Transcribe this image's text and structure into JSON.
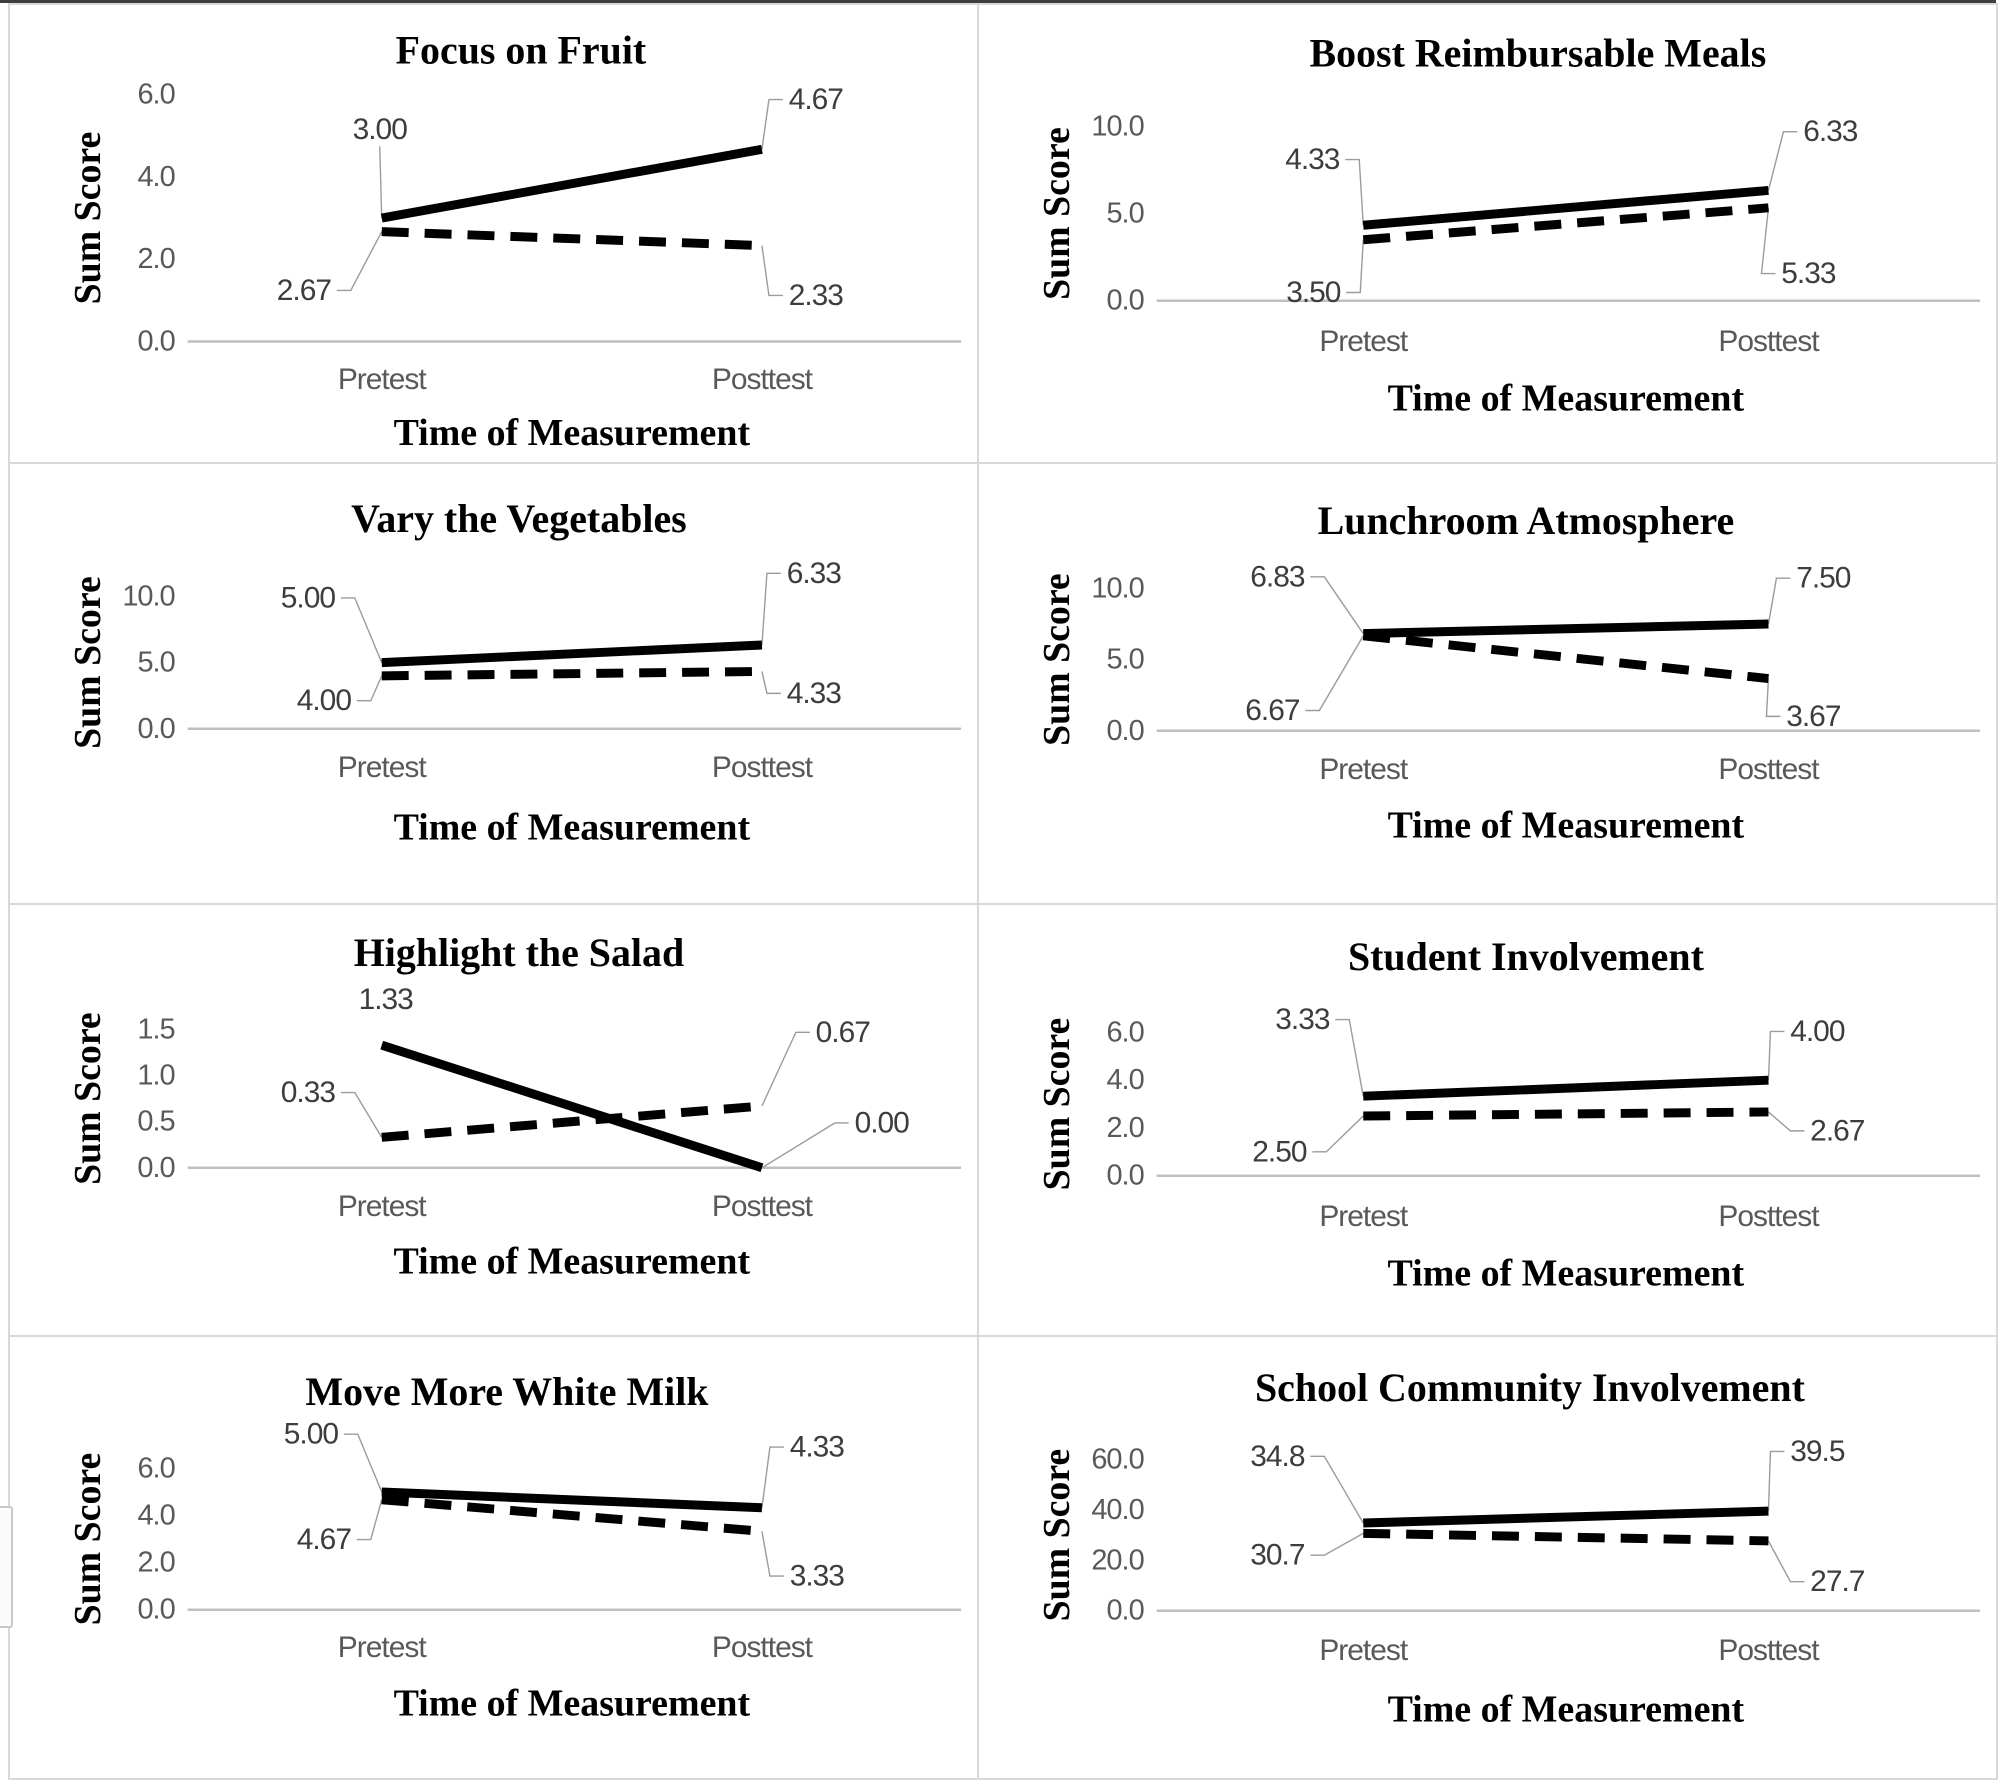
{
  "figure": {
    "background": "#ffffff",
    "top_edge_color": "#3e3e3e",
    "panel_border_color": "#d9d9d9",
    "axis_line_color": "#bfbfbf",
    "leader_line_color": "#9b9b9b",
    "series_line_color": "#000000",
    "tick_text_color": "#595959",
    "data_label_color": "#3d3d3d"
  },
  "chart_data": [
    {
      "type": "line",
      "title": "Focus on Fruit",
      "ylabel": "Sum Score",
      "xlabel": "Time of Measurement",
      "categories": [
        "Pretest",
        "Posttest"
      ],
      "yticks": [
        "6.0",
        "4.0",
        "2.0",
        "0.0"
      ],
      "ylim": [
        0,
        6
      ],
      "grid": false,
      "legend": "none",
      "series": [
        {
          "style": "solid",
          "values": [
            3.0,
            4.67
          ],
          "labels": [
            "3.00",
            "4.67"
          ],
          "label_offsets": [
            {
              "dx": -2,
              "dy": -89
            },
            {
              "dx": 54,
              "dy": -50
            }
          ],
          "leaders": [
            "line",
            "line"
          ]
        },
        {
          "style": "dashed",
          "values": [
            2.67,
            2.33
          ],
          "labels": [
            "2.67",
            "2.33"
          ],
          "label_offsets": [
            {
              "dx": -78,
              "dy": 59
            },
            {
              "dx": 54,
              "dy": 50
            }
          ],
          "leaders": [
            "line",
            "line"
          ]
        }
      ]
    },
    {
      "type": "line",
      "title": "Boost Reimbursable Meals",
      "ylabel": "Sum Score",
      "xlabel": "Time of Measurement",
      "categories": [
        "Pretest",
        "Posttest"
      ],
      "yticks": [
        "10.0",
        "5.0",
        "0.0"
      ],
      "ylim": [
        0,
        10
      ],
      "grid": false,
      "legend": "none",
      "series": [
        {
          "style": "solid",
          "values": [
            4.33,
            6.33
          ],
          "labels": [
            "4.33",
            "6.33"
          ],
          "label_offsets": [
            {
              "dx": -51,
              "dy": -66
            },
            {
              "dx": 62,
              "dy": -59
            }
          ],
          "leaders": [
            "line",
            "line"
          ]
        },
        {
          "style": "dashed",
          "values": [
            3.5,
            5.33
          ],
          "labels": [
            "3.50",
            "5.33"
          ],
          "label_offsets": [
            {
              "dx": -50,
              "dy": 53
            },
            {
              "dx": 40,
              "dy": 66
            }
          ],
          "leaders": [
            "line",
            "line"
          ]
        }
      ]
    },
    {
      "type": "line",
      "title": "Vary the Vegetables",
      "ylabel": "Sum Score",
      "xlabel": "Time of Measurement",
      "categories": [
        "Pretest",
        "Posttest"
      ],
      "yticks": [
        "10.0",
        "5.0",
        "0.0"
      ],
      "ylim": [
        0,
        10
      ],
      "grid": false,
      "legend": "none",
      "series": [
        {
          "style": "solid",
          "values": [
            5.0,
            6.33
          ],
          "labels": [
            "5.00",
            "6.33"
          ],
          "label_offsets": [
            {
              "dx": -74,
              "dy": -65
            },
            {
              "dx": 52,
              "dy": -72
            }
          ],
          "leaders": [
            "line",
            "line"
          ]
        },
        {
          "style": "dashed",
          "values": [
            4.0,
            4.33
          ],
          "labels": [
            "4.00",
            "4.33"
          ],
          "label_offsets": [
            {
              "dx": -58,
              "dy": 25
            },
            {
              "dx": 52,
              "dy": 22
            }
          ],
          "leaders": [
            "line",
            "line"
          ]
        }
      ]
    },
    {
      "type": "line",
      "title": "Lunchroom Atmosphere",
      "ylabel": "Sum Score",
      "xlabel": "Time of Measurement",
      "categories": [
        "Pretest",
        "Posttest"
      ],
      "yticks": [
        "10.0",
        "5.0",
        "0.0"
      ],
      "ylim": [
        0,
        10
      ],
      "grid": false,
      "legend": "none",
      "series": [
        {
          "style": "solid",
          "values": [
            6.83,
            7.5
          ],
          "labels": [
            "6.83",
            "7.50"
          ],
          "label_offsets": [
            {
              "dx": -86,
              "dy": -57
            },
            {
              "dx": 55,
              "dy": -46
            }
          ],
          "leaders": [
            "line",
            "line"
          ]
        },
        {
          "style": "dashed",
          "values": [
            6.67,
            3.67
          ],
          "labels": [
            "6.67",
            "3.67"
          ],
          "label_offsets": [
            {
              "dx": -91,
              "dy": 75
            },
            {
              "dx": 45,
              "dy": 38
            }
          ],
          "leaders": [
            "line",
            "line"
          ]
        }
      ]
    },
    {
      "type": "line",
      "title": "Highlight the Salad",
      "ylabel": "Sum Score",
      "xlabel": "Time of Measurement",
      "categories": [
        "Pretest",
        "Posttest"
      ],
      "yticks": [
        "1.5",
        "1.0",
        "0.5",
        "0.0"
      ],
      "ylim": [
        0,
        1.5
      ],
      "grid": false,
      "legend": "none",
      "series": [
        {
          "style": "solid",
          "values": [
            1.33,
            0.0
          ],
          "labels": [
            "1.33",
            "0.00"
          ],
          "label_offsets": [
            {
              "dx": 4,
              "dy": -46
            },
            {
              "dx": 120,
              "dy": -45
            }
          ],
          "leaders": [
            "none",
            "line"
          ]
        },
        {
          "style": "dashed",
          "values": [
            0.33,
            0.67
          ],
          "labels": [
            "0.33",
            "0.67"
          ],
          "label_offsets": [
            {
              "dx": -74,
              "dy": -45
            },
            {
              "dx": 81,
              "dy": -74
            }
          ],
          "leaders": [
            "line",
            "line"
          ]
        }
      ]
    },
    {
      "type": "line",
      "title": "Student Involvement",
      "ylabel": "Sum Score",
      "xlabel": "Time of Measurement",
      "categories": [
        "Pretest",
        "Posttest"
      ],
      "yticks": [
        "6.0",
        "4.0",
        "2.0",
        "0.0"
      ],
      "ylim": [
        0,
        6
      ],
      "grid": false,
      "legend": "none",
      "series": [
        {
          "style": "solid",
          "values": [
            3.33,
            4.0
          ],
          "labels": [
            "3.33",
            "4.00"
          ],
          "label_offsets": [
            {
              "dx": -61,
              "dy": -77
            },
            {
              "dx": 49,
              "dy": -49
            }
          ],
          "leaders": [
            "line",
            "line"
          ]
        },
        {
          "style": "dashed",
          "values": [
            2.5,
            2.67
          ],
          "labels": [
            "2.50",
            "2.67"
          ],
          "label_offsets": [
            {
              "dx": -84,
              "dy": 36
            },
            {
              "dx": 69,
              "dy": 19
            }
          ],
          "leaders": [
            "line",
            "line"
          ]
        }
      ]
    },
    {
      "type": "line",
      "title": "Move More White Milk",
      "ylabel": "Sum Score",
      "xlabel": "Time of Measurement",
      "categories": [
        "Pretest",
        "Posttest"
      ],
      "yticks": [
        "6.0",
        "4.0",
        "2.0",
        "0.0"
      ],
      "ylim": [
        0,
        6
      ],
      "grid": false,
      "legend": "none",
      "series": [
        {
          "style": "solid",
          "values": [
            5.0,
            4.33
          ],
          "labels": [
            "5.00",
            "4.33"
          ],
          "label_offsets": [
            {
              "dx": -71,
              "dy": -58
            },
            {
              "dx": 55,
              "dy": -61
            }
          ],
          "leaders": [
            "line",
            "line"
          ]
        },
        {
          "style": "dashed",
          "values": [
            4.67,
            3.33
          ],
          "labels": [
            "4.67",
            "3.33"
          ],
          "label_offsets": [
            {
              "dx": -58,
              "dy": 40
            },
            {
              "dx": 55,
              "dy": 45
            }
          ],
          "leaders": [
            "line",
            "line"
          ]
        }
      ]
    },
    {
      "type": "line",
      "title": "School Community Involvement",
      "ylabel": "Sum Score",
      "xlabel": "Time of Measurement",
      "categories": [
        "Pretest",
        "Posttest"
      ],
      "yticks": [
        "60.0",
        "40.0",
        "20.0",
        "0.0"
      ],
      "ylim": [
        0,
        60
      ],
      "grid": false,
      "legend": "none",
      "series": [
        {
          "style": "solid",
          "values": [
            34.8,
            39.5
          ],
          "labels": [
            "34.8",
            "39.5"
          ],
          "label_offsets": [
            {
              "dx": -86,
              "dy": -67
            },
            {
              "dx": 49,
              "dy": -60
            }
          ],
          "leaders": [
            "line",
            "line"
          ]
        },
        {
          "style": "dashed",
          "values": [
            30.7,
            27.7
          ],
          "labels": [
            "30.7",
            "27.7"
          ],
          "label_offsets": [
            {
              "dx": -86,
              "dy": 22
            },
            {
              "dx": 69,
              "dy": 41
            }
          ],
          "leaders": [
            "line",
            "line"
          ]
        }
      ]
    }
  ]
}
